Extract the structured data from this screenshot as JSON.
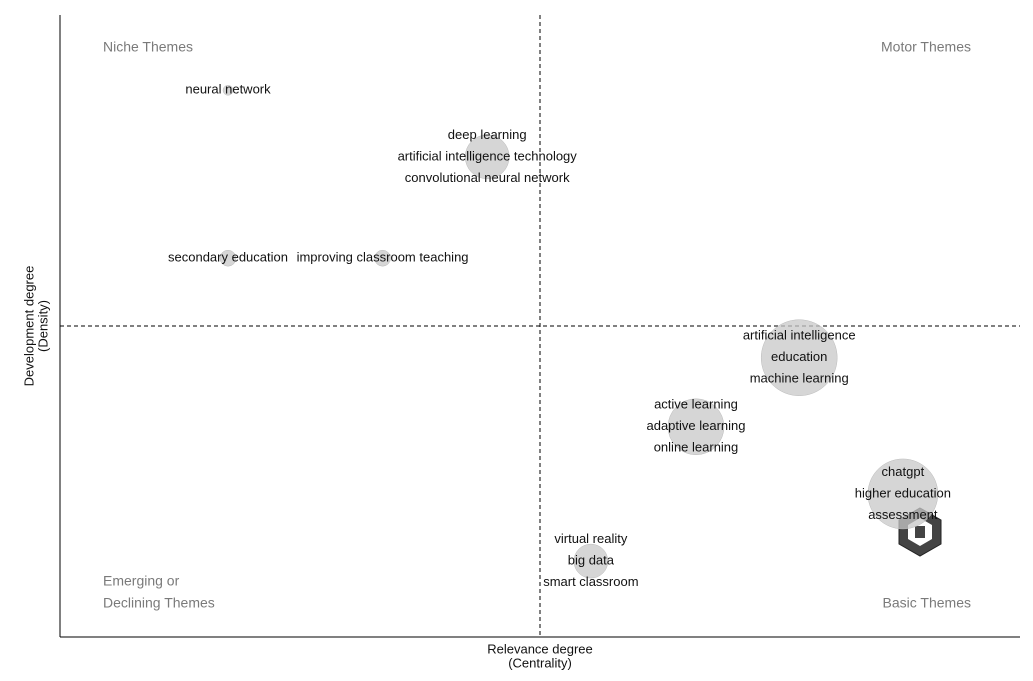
{
  "chart_data": {
    "type": "bubble",
    "x_label": [
      "Relevance degree",
      "(Centrality)"
    ],
    "y_label": [
      "Development degree",
      "(Density)"
    ],
    "quadrants": {
      "top_left": [
        "Niche Themes"
      ],
      "top_right": [
        "Motor Themes"
      ],
      "bottom_left": [
        "Emerging or",
        "Declining Themes"
      ],
      "bottom_right": [
        "Basic Themes"
      ]
    },
    "xlim": [
      0,
      100
    ],
    "ylim": [
      0,
      100
    ],
    "x_divider": 50,
    "y_divider": 50,
    "color": "#c8c8c8",
    "labels": [
      [
        "neural network"
      ],
      [
        "deep learning",
        "artificial intelligence technology",
        "convolutional neural network"
      ],
      [
        "secondary education"
      ],
      [
        "improving classroom teaching"
      ],
      [
        "artificial intelligence",
        "education",
        "machine learning"
      ],
      [
        "active learning",
        "adaptive learning",
        "online learning"
      ],
      [
        "chatgpt",
        "higher education",
        "assessment"
      ],
      [
        "virtual reality",
        "big data",
        "smart classroom"
      ]
    ],
    "x": [
      17.5,
      44.5,
      17.5,
      33.6,
      77.0,
      66.25,
      87.8,
      55.3
    ],
    "y": [
      87.9,
      77.2,
      60.9,
      60.9,
      44.9,
      33.8,
      23.0,
      12.2
    ],
    "size": [
      5,
      22,
      8,
      8,
      38,
      28,
      35,
      17
    ]
  }
}
